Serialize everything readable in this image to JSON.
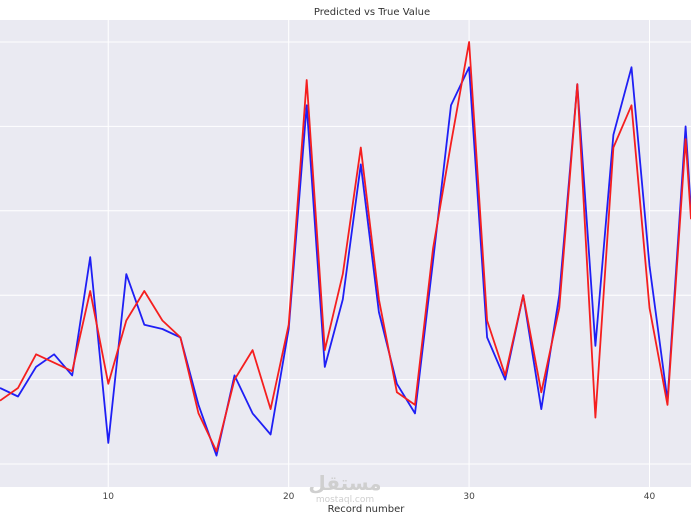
{
  "chart_data": {
    "type": "line",
    "title": "Predicted vs True Value",
    "xlabel": "Record number",
    "ylabel": "",
    "x_ticks": [
      10,
      20,
      30,
      40
    ],
    "xlim": [
      4,
      42.3
    ],
    "ylim": [
      0,
      100
    ],
    "grid": true,
    "colors": {
      "background": "#eaeaf2",
      "grid": "#ffffff",
      "blue": "#1f1ff5",
      "red": "#f51f1f"
    },
    "x": [
      4,
      5,
      6,
      7,
      8,
      9,
      10,
      11,
      12,
      13,
      14,
      15,
      16,
      17,
      18,
      19,
      20,
      21,
      22,
      23,
      24,
      25,
      26,
      27,
      28,
      29,
      30,
      31,
      32,
      33,
      34,
      35,
      36,
      37,
      38,
      39,
      40,
      41,
      42,
      42.3
    ],
    "series": [
      {
        "color": "blue",
        "values": [
          18,
          16,
          23,
          26,
          21,
          49,
          5,
          45,
          33,
          32,
          30,
          14,
          2,
          21,
          12,
          7,
          32,
          85,
          23,
          39,
          71,
          36,
          19,
          12,
          48,
          85,
          94,
          30,
          20,
          40,
          13,
          40,
          90,
          28,
          78,
          94,
          47,
          15,
          80,
          60
        ]
      },
      {
        "color": "red",
        "values": [
          15,
          18,
          26,
          24,
          22,
          41,
          19,
          34,
          41,
          34,
          30,
          12,
          3,
          20,
          27,
          13,
          33,
          91,
          27,
          45,
          75,
          39,
          17,
          14,
          51,
          76,
          100,
          34,
          21,
          40,
          17,
          37,
          90,
          11,
          75,
          85,
          37,
          14,
          77,
          58
        ]
      }
    ]
  },
  "watermark": {
    "text": "مستقل",
    "sub": "mostaql.com"
  }
}
